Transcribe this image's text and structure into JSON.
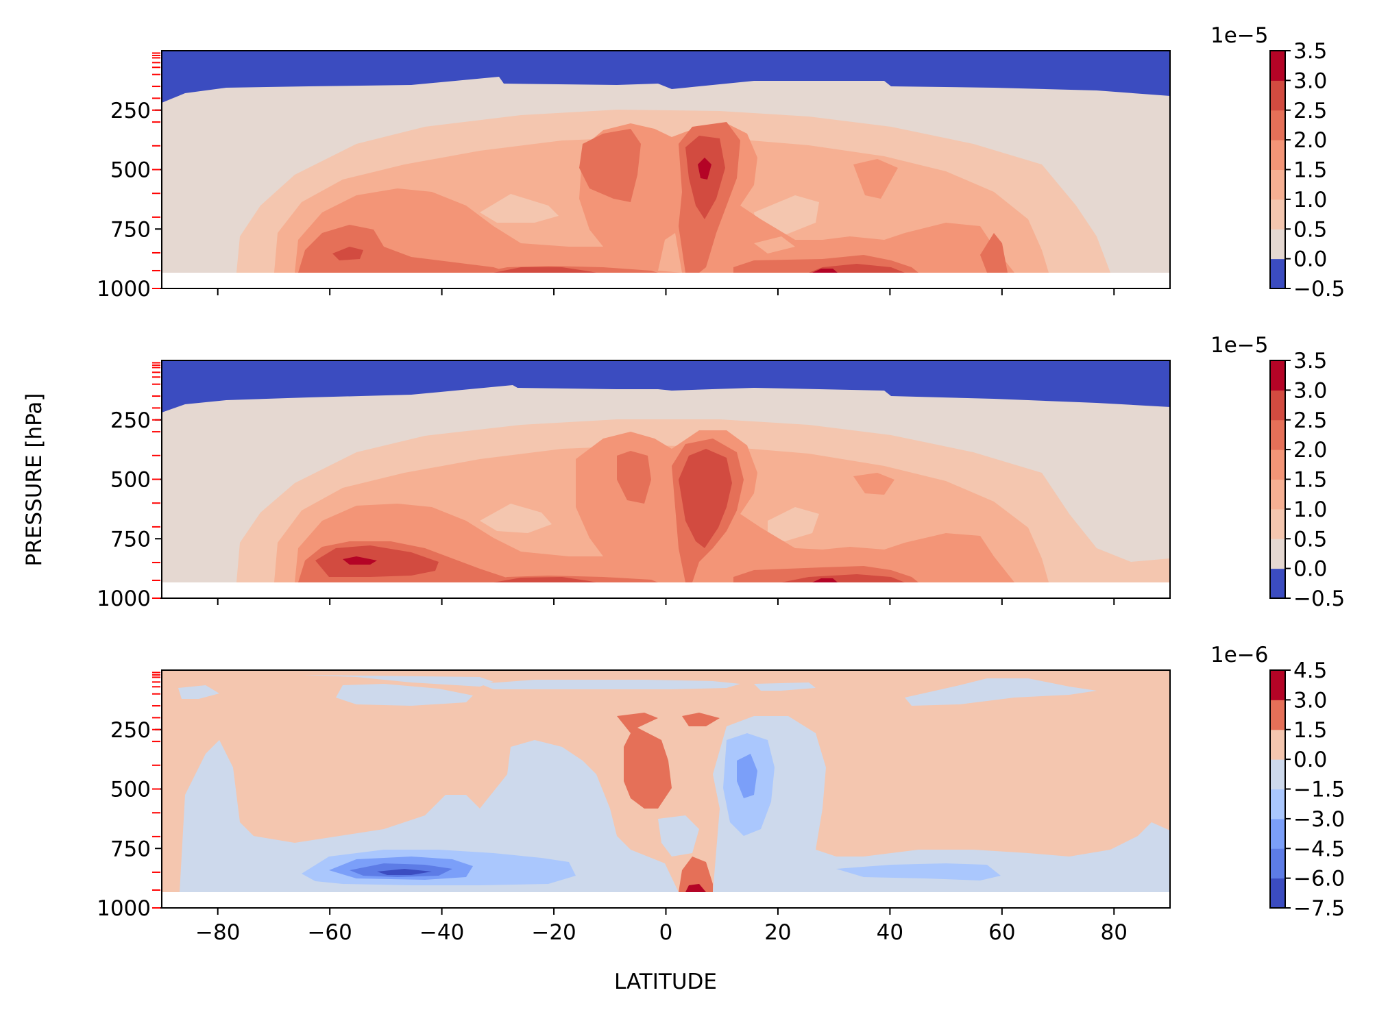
{
  "figure": {
    "ylabel": "PRESSURE [hPa]",
    "xlabel": "LATITUDE"
  },
  "colors": {
    "blue_deep": "#3b4cc0",
    "blue_2": "#5d7ce6",
    "blue_3": "#7b9ff9",
    "blue_4": "#aac7fd",
    "blue_5": "#cdd9ec",
    "neutral": "#e5d8d1",
    "red_1": "#f4c6af",
    "red_2": "#f6b093",
    "red_3": "#f39577",
    "red_4": "#e57058",
    "red_5": "#d24b40",
    "red_6": "#b40426",
    "pressure_tick": "#ff0000"
  },
  "chart_data": [
    {
      "type": "contour",
      "panel": "top",
      "x_range": [
        -90,
        90
      ],
      "y_range": [
        0,
        1000
      ],
      "y_inverted": true,
      "x_ticks": [
        -80,
        -60,
        -40,
        -20,
        0,
        20,
        40,
        60,
        80
      ],
      "y_ticks": [
        250,
        500,
        750,
        1000
      ],
      "colorbar": {
        "exponent_label": "1e−5",
        "levels": [
          -0.5,
          0.0,
          0.5,
          1.0,
          1.5,
          2.0,
          2.5,
          3.0,
          3.5
        ],
        "tick_labels": [
          "−0.5",
          "0.0",
          "0.5",
          "1.0",
          "1.5",
          "2.0",
          "2.5",
          "3.0",
          "3.5"
        ]
      },
      "level_pressures_hPa": [
        10,
        20,
        30,
        50,
        70,
        100,
        150,
        200,
        250,
        300,
        400,
        500,
        600,
        700,
        850,
        925,
        1000
      ],
      "description_fields": {
        "max_region_lat": 7,
        "max_region_pressure": 460
      }
    },
    {
      "type": "contour",
      "panel": "middle",
      "x_range": [
        -90,
        90
      ],
      "y_range": [
        0,
        1000
      ],
      "y_inverted": true,
      "x_ticks": [
        -80,
        -60,
        -40,
        -20,
        0,
        20,
        40,
        60,
        80
      ],
      "y_ticks": [
        250,
        500,
        750,
        1000
      ],
      "colorbar": {
        "exponent_label": "1e−5",
        "levels": [
          -0.5,
          0.0,
          0.5,
          1.0,
          1.5,
          2.0,
          2.5,
          3.0,
          3.5
        ],
        "tick_labels": [
          "−0.5",
          "0.0",
          "0.5",
          "1.0",
          "1.5",
          "2.0",
          "2.5",
          "3.0",
          "3.5"
        ]
      },
      "level_pressures_hPa": [
        10,
        20,
        30,
        50,
        70,
        100,
        150,
        200,
        250,
        300,
        400,
        500,
        600,
        700,
        850,
        925,
        1000
      ]
    },
    {
      "type": "contour",
      "panel": "bottom",
      "x_range": [
        -90,
        90
      ],
      "y_range": [
        0,
        1000
      ],
      "y_inverted": true,
      "x_ticks": [
        -80,
        -60,
        -40,
        -20,
        0,
        20,
        40,
        60,
        80
      ],
      "x_tick_labels": [
        "−80",
        "−60",
        "−40",
        "−20",
        "0",
        "20",
        "40",
        "60",
        "80"
      ],
      "y_ticks": [
        250,
        500,
        750,
        1000
      ],
      "colorbar": {
        "exponent_label": "1e−6",
        "levels": [
          -7.5,
          -6.0,
          -4.5,
          -3.0,
          -1.5,
          0.0,
          1.5,
          3.0,
          4.5
        ],
        "tick_labels": [
          "−7.5",
          "−6.0",
          "−4.5",
          "−3.0",
          "−1.5",
          "0.0",
          "1.5",
          "3.0",
          "4.5"
        ]
      },
      "level_pressures_hPa": [
        10,
        20,
        30,
        50,
        70,
        100,
        150,
        200,
        250,
        300,
        400,
        500,
        600,
        700,
        850,
        925,
        1000
      ]
    }
  ]
}
